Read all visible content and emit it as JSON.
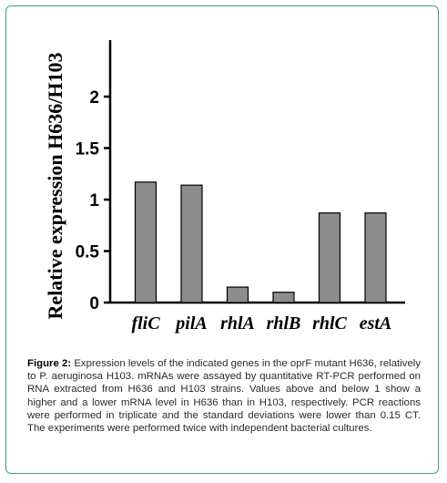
{
  "chart_data": {
    "type": "bar",
    "categories": [
      "fliC",
      "pilA",
      "rhlA",
      "rhlB",
      "rhlC",
      "estA"
    ],
    "values": [
      1.17,
      1.14,
      0.15,
      0.1,
      0.87,
      0.87
    ],
    "ylabel": "Relative expression H636/H103",
    "xlabel": "",
    "yticks": [
      "0",
      "0.5",
      "1",
      "1.5",
      "2"
    ],
    "ytick_values": [
      0,
      0.5,
      1,
      1.5,
      2
    ],
    "ylim": [
      0,
      2.6
    ],
    "bar_color": "#8c8c8c",
    "grid": false
  },
  "caption": {
    "label": "Figure 2:",
    "text": "Expression levels of the indicated genes in the oprF mutant H636, relatively to P. aeruginosa H103. mRNAs were assayed by quantitative RT-PCR performed on RNA extracted from H636 and H103 strains. Values above and below 1 show a higher and a lower mRNA level in H636 than in H103, respectively. PCR reactions were performed in triplicate and the standard deviations were lower than 0.15 CT. The experiments were performed twice with independent bacterial cultures."
  },
  "colors": {
    "border": "#3d9a8a",
    "bar": "#8c8c8c"
  }
}
